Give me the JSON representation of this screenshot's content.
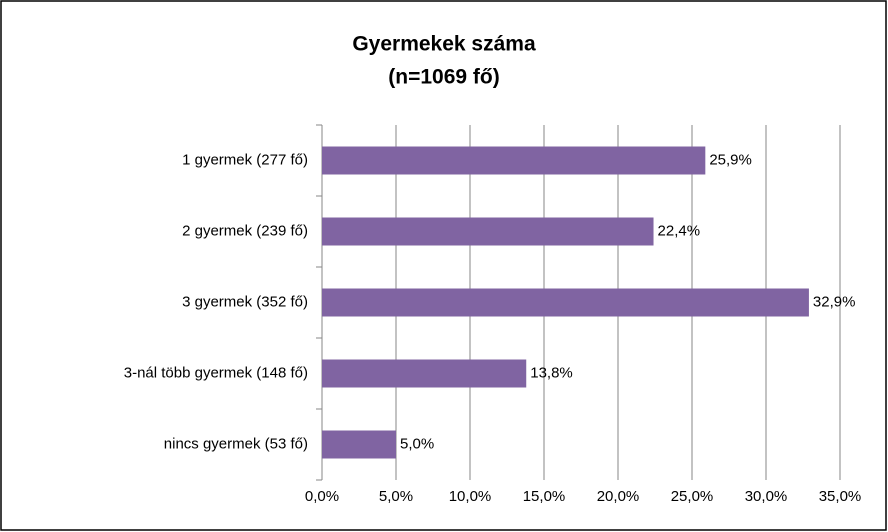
{
  "chart_data": {
    "type": "barh",
    "title": "Gyermekek száma",
    "subtitle": "(n=1069 fő)",
    "categories": [
      "1 gyermek (277 fő)",
      "2 gyermek (239 fő)",
      "3 gyermek (352 fő)",
      "3-nál több gyermek (148 fő)",
      "nincs gyermek (53 fő)"
    ],
    "values": [
      25.9,
      22.4,
      32.9,
      13.8,
      5.0
    ],
    "value_labels": [
      "25,9%",
      "22,4%",
      "32,9%",
      "13,8%",
      "5,0%"
    ],
    "color": "#8064a2",
    "xlim": [
      0,
      35
    ],
    "xticks": [
      {
        "value": 0,
        "label": "0,0%"
      },
      {
        "value": 5,
        "label": "5,0%"
      },
      {
        "value": 10,
        "label": "10,0%"
      },
      {
        "value": 15,
        "label": "15,0%"
      },
      {
        "value": 20,
        "label": "20,0%"
      },
      {
        "value": 25,
        "label": "25,0%"
      },
      {
        "value": 30,
        "label": "30,0%"
      },
      {
        "value": 35,
        "label": "35,0%"
      }
    ],
    "grid": true
  }
}
